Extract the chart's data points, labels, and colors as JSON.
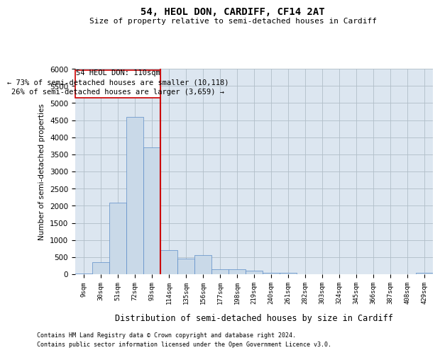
{
  "title": "54, HEOL DON, CARDIFF, CF14 2AT",
  "subtitle": "Size of property relative to semi-detached houses in Cardiff",
  "xlabel": "Distribution of semi-detached houses by size in Cardiff",
  "ylabel": "Number of semi-detached properties",
  "categories": [
    "9sqm",
    "30sqm",
    "51sqm",
    "72sqm",
    "93sqm",
    "114sqm",
    "135sqm",
    "156sqm",
    "177sqm",
    "198sqm",
    "219sqm",
    "240sqm",
    "261sqm",
    "282sqm",
    "303sqm",
    "324sqm",
    "345sqm",
    "366sqm",
    "387sqm",
    "408sqm",
    "429sqm"
  ],
  "values": [
    30,
    350,
    2100,
    4600,
    3700,
    700,
    450,
    550,
    150,
    150,
    100,
    50,
    50,
    0,
    0,
    0,
    0,
    0,
    0,
    0,
    50
  ],
  "bar_color": "#c9d9e8",
  "bar_edge_color": "#5b8cc8",
  "vline_x_idx": 4.5,
  "vline_color": "#cc0000",
  "property_label": "54 HEOL DON: 110sqm",
  "annotation_smaller": "← 73% of semi-detached houses are smaller (10,118)",
  "annotation_larger": "26% of semi-detached houses are larger (3,659) →",
  "annotation_box_color": "#ffffff",
  "annotation_box_edge": "#cc0000",
  "ylim": [
    0,
    6000
  ],
  "yticks": [
    0,
    500,
    1000,
    1500,
    2000,
    2500,
    3000,
    3500,
    4000,
    4500,
    5000,
    5500,
    6000
  ],
  "background_color": "#ffffff",
  "axes_bg_color": "#dce6f0",
  "grid_color": "#b0bec8",
  "footer1": "Contains HM Land Registry data © Crown copyright and database right 2024.",
  "footer2": "Contains public sector information licensed under the Open Government Licence v3.0."
}
